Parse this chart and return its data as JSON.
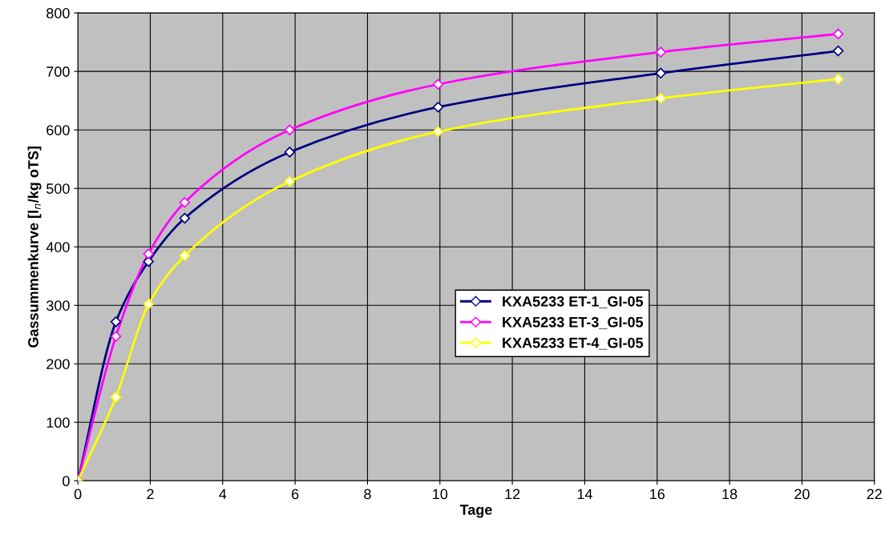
{
  "chart_data": {
    "type": "line",
    "xlabel": "Tage",
    "ylabel": "Gassummenkurve [l$_{n}$/kg oTS]",
    "series": [
      {
        "name": "KXA5233 ET-1_GI-05",
        "color": "#000080",
        "x": [
          0,
          1.05,
          1.95,
          2.95,
          5.85,
          9.95,
          16.1,
          21
        ],
        "values": [
          0,
          272,
          375,
          449,
          562,
          639,
          697,
          735
        ]
      },
      {
        "name": "KXA5233 ET-3_GI-05",
        "color": "#ff00ff",
        "x": [
          0,
          1.05,
          1.95,
          2.95,
          5.85,
          9.95,
          16.1,
          21
        ],
        "values": [
          0,
          247,
          388,
          476,
          600,
          678,
          733,
          764
        ]
      },
      {
        "name": "KXA5233 ET-4_GI-05",
        "color": "#ffff00",
        "x": [
          0,
          1.05,
          1.95,
          2.95,
          5.85,
          9.95,
          16.1,
          21
        ],
        "values": [
          0,
          143,
          302,
          385,
          512,
          597,
          654,
          687
        ]
      }
    ],
    "xlim": [
      0,
      22
    ],
    "xticks": [
      0,
      2,
      4,
      6,
      8,
      10,
      12,
      14,
      16,
      18,
      20,
      22
    ],
    "ylim": [
      0,
      800
    ],
    "yticks": [
      0,
      100,
      200,
      300,
      400,
      500,
      600,
      700,
      800
    ],
    "grid": true,
    "legend": "center",
    "marker": "diamond",
    "line_style": "solid"
  }
}
